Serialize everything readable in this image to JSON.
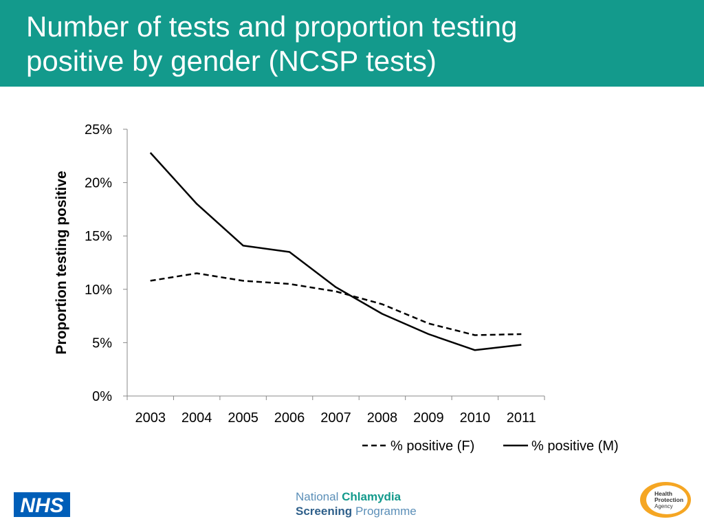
{
  "slide": {
    "title_line1": "Number of tests and proportion testing",
    "title_line2": "positive by gender (NCSP tests)",
    "header_color": "#139a8c"
  },
  "chart_data": {
    "type": "line",
    "title": "",
    "xlabel": "",
    "ylabel": "Proportion testing positive",
    "ylim": [
      0,
      0.25
    ],
    "y_ticks": [
      "0%",
      "5%",
      "10%",
      "15%",
      "20%",
      "25%"
    ],
    "y_tick_values": [
      0,
      0.05,
      0.1,
      0.15,
      0.2,
      0.25
    ],
    "categories": [
      "2003",
      "2004",
      "2005",
      "2006",
      "2007",
      "2008",
      "2009",
      "2010",
      "2011"
    ],
    "series": [
      {
        "name": "% positive (F)",
        "style": "dashed",
        "color": "#000000",
        "values": [
          0.108,
          0.115,
          0.108,
          0.105,
          0.098,
          0.086,
          0.068,
          0.057,
          0.058
        ]
      },
      {
        "name": "% positive (M)",
        "style": "solid",
        "color": "#000000",
        "values": [
          0.228,
          0.18,
          0.141,
          0.135,
          0.102,
          0.077,
          0.058,
          0.043,
          0.048
        ]
      }
    ],
    "legend_position": "bottom-right",
    "grid": false
  },
  "footer": {
    "nhs_text": "NHS",
    "ncsp_national": "National",
    "ncsp_chlamydia": "Chlamydia",
    "ncsp_screening": "Screening",
    "ncsp_programme": "Programme",
    "hpa_line1": "Health",
    "hpa_line2": "Protection",
    "hpa_line3": "Agency"
  }
}
